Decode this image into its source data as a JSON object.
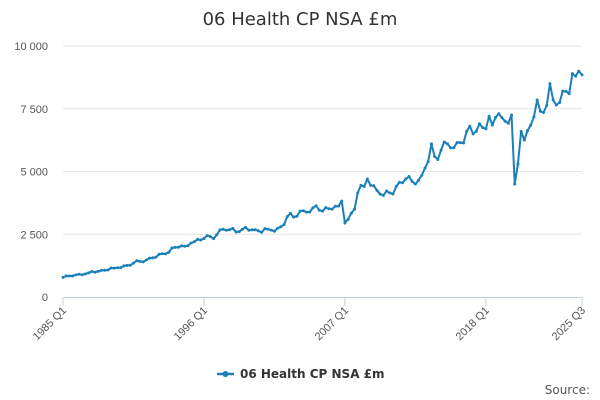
{
  "chart_data": {
    "type": "line",
    "title": "06 Health CP NSA £m",
    "xlabel": "",
    "ylabel": "",
    "x_start": "1985 Q1",
    "x_end": "2025 Q3",
    "ylim": [
      0,
      10000
    ],
    "yticks": [
      0,
      2500,
      5000,
      7500,
      10000
    ],
    "ytick_labels": [
      "0",
      "2 500",
      "5 000",
      "7 500",
      "10 000"
    ],
    "xtick_labels": [
      "1985 Q1",
      "1996 Q1",
      "2007 Q1",
      "2018 Q1",
      "2025 Q3"
    ],
    "grid": true,
    "legend_position": "bottom",
    "series": [
      {
        "name": "06 Health CP NSA £m",
        "color": "#1b7fb8",
        "points": [
          [
            "1985 Q1",
            780
          ],
          [
            "1986 Q1",
            880
          ],
          [
            "1987 Q1",
            960
          ],
          [
            "1988 Q1",
            1060
          ],
          [
            "1989 Q1",
            1150
          ],
          [
            "1990 Q1",
            1260
          ],
          [
            "1991 Q1",
            1420
          ],
          [
            "1992 Q1",
            1560
          ],
          [
            "1993 Q1",
            1720
          ],
          [
            "1993 Q3",
            1950
          ],
          [
            "1994 Q1",
            1980
          ],
          [
            "1994 Q3",
            2020
          ],
          [
            "1995 Q1",
            2150
          ],
          [
            "1996 Q1",
            2330
          ],
          [
            "1997 Q1",
            2480
          ],
          [
            "1997 Q3",
            2700
          ],
          [
            "1998 Q1",
            2680
          ],
          [
            "1999 Q1",
            2700
          ],
          [
            "2000 Q1",
            2680
          ],
          [
            "2001 Q1",
            2700
          ],
          [
            "2001 Q3",
            2620
          ],
          [
            "2002 Q1",
            2800
          ],
          [
            "2002 Q3",
            3200
          ],
          [
            "2003 Q1",
            3180
          ],
          [
            "2003 Q3",
            3420
          ],
          [
            "2004 Q1",
            3380
          ],
          [
            "2004 Q3",
            3550
          ],
          [
            "2005 Q1",
            3460
          ],
          [
            "2005 Q3",
            3560
          ],
          [
            "2006 Q1",
            3500
          ],
          [
            "2006 Q3",
            3620
          ],
          [
            "2006 Q4",
            3820
          ],
          [
            "2007 Q1",
            2950
          ],
          [
            "2007 Q2",
            3100
          ],
          [
            "2007 Q4",
            3500
          ],
          [
            "2008 Q1",
            4150
          ],
          [
            "2008 Q3",
            4400
          ],
          [
            "2008 Q4",
            4700
          ],
          [
            "2009 Q1",
            4450
          ],
          [
            "2009 Q3",
            4250
          ],
          [
            "2010 Q1",
            4050
          ],
          [
            "2010 Q3",
            4150
          ],
          [
            "2011 Q1",
            4400
          ],
          [
            "2011 Q3",
            4550
          ],
          [
            "2012 Q1",
            4800
          ],
          [
            "2012 Q3",
            4500
          ],
          [
            "2013 Q1",
            4850
          ],
          [
            "2013 Q3",
            5400
          ],
          [
            "2013 Q4",
            6100
          ],
          [
            "2014 Q1",
            5600
          ],
          [
            "2014 Q3",
            5850
          ],
          [
            "2015 Q1",
            6100
          ],
          [
            "2015 Q3",
            5950
          ],
          [
            "2016 Q1",
            6150
          ],
          [
            "2016 Q3",
            6600
          ],
          [
            "2017 Q1",
            6500
          ],
          [
            "2017 Q3",
            6900
          ],
          [
            "2018 Q1",
            6700
          ],
          [
            "2018 Q2",
            7200
          ],
          [
            "2018 Q3",
            6850
          ],
          [
            "2019 Q1",
            7300
          ],
          [
            "2019 Q3",
            7000
          ],
          [
            "2020 Q1",
            7250
          ],
          [
            "2020 Q2",
            4500
          ],
          [
            "2020 Q3",
            5300
          ],
          [
            "2020 Q4",
            6600
          ],
          [
            "2021 Q1",
            6250
          ],
          [
            "2021 Q3",
            6850
          ],
          [
            "2022 Q1",
            7850
          ],
          [
            "2022 Q2",
            7400
          ],
          [
            "2022 Q3",
            7350
          ],
          [
            "2023 Q1",
            8500
          ],
          [
            "2023 Q2",
            7850
          ],
          [
            "2023 Q4",
            7750
          ],
          [
            "2024 Q1",
            8200
          ],
          [
            "2024 Q3",
            8100
          ],
          [
            "2024 Q4",
            8900
          ],
          [
            "2025 Q1",
            8800
          ],
          [
            "2025 Q2",
            9000
          ],
          [
            "2025 Q3",
            8850
          ]
        ]
      }
    ]
  },
  "footer": {
    "source_label": "Source:"
  }
}
